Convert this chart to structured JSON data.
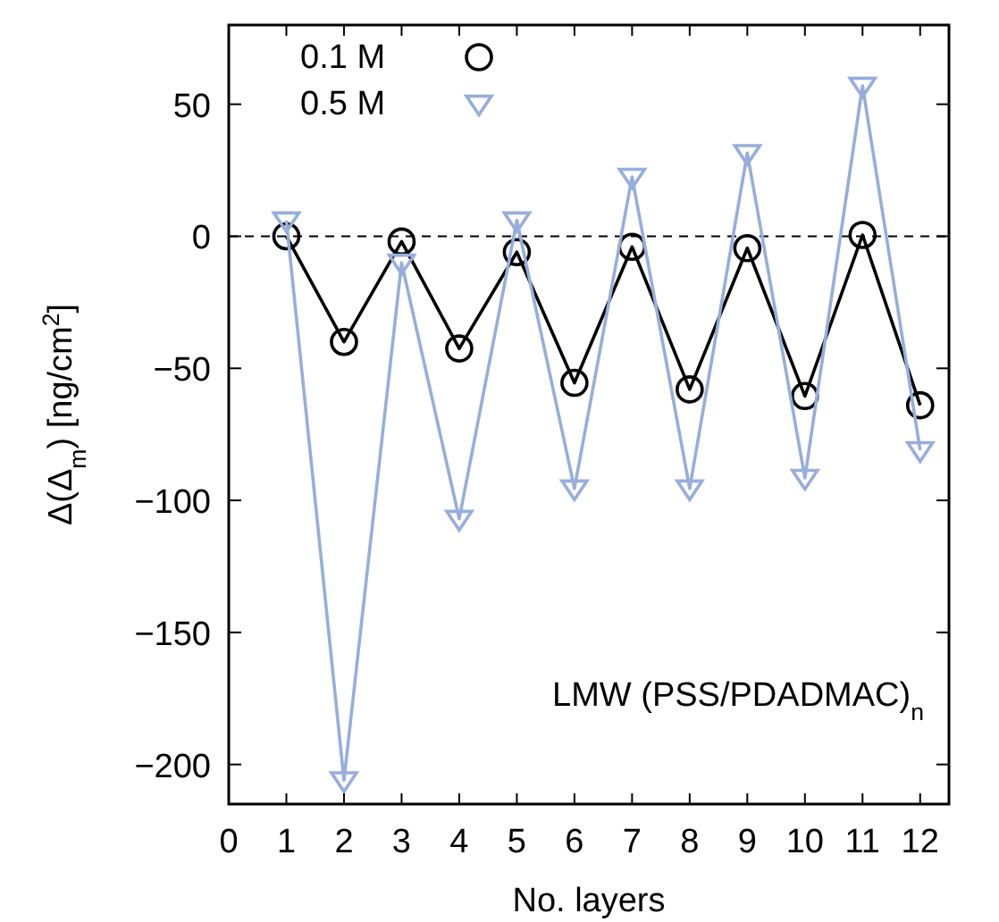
{
  "chart_data": {
    "type": "line",
    "xlabel": "No. layers",
    "ylabel": "Δ(Δ$_{m}$) [ng/cm$^{2}$]",
    "x": [
      1,
      2,
      3,
      4,
      5,
      6,
      7,
      8,
      9,
      10,
      11,
      12
    ],
    "series": [
      {
        "name": "0.1 M",
        "color": "#000000",
        "marker": "circle",
        "values": [
          0,
          -40,
          -2,
          -42.5,
          -6,
          -55.5,
          -4,
          -58,
          -4.5,
          -60.5,
          0.5,
          -64
        ]
      },
      {
        "name": "0.5 M",
        "color": "#97aedc",
        "marker": "triangle",
        "values": [
          6,
          -206,
          -10,
          -107,
          6,
          -95.5,
          22.5,
          -95.5,
          31.5,
          -91.5,
          57,
          -81
        ]
      }
    ],
    "xlim": [
      0,
      12.5
    ],
    "xticks": [
      0,
      1,
      2,
      3,
      4,
      5,
      6,
      7,
      8,
      9,
      10,
      11,
      12
    ],
    "ylim": [
      -215,
      80
    ],
    "yticks": [
      {
        "value": -200,
        "label": "−200"
      },
      {
        "value": -150,
        "label": "−150"
      },
      {
        "value": -100,
        "label": "−100"
      },
      {
        "value": -50,
        "label": "−50"
      },
      0,
      50
    ],
    "ref_lines": [
      {
        "axis": "y",
        "value": 0,
        "line_style": "dashed",
        "color": "#000000"
      }
    ],
    "annotations": [
      "LMW (PSS/PDADMAC)$_{n}$"
    ],
    "legend": "top left",
    "grid": false
  }
}
